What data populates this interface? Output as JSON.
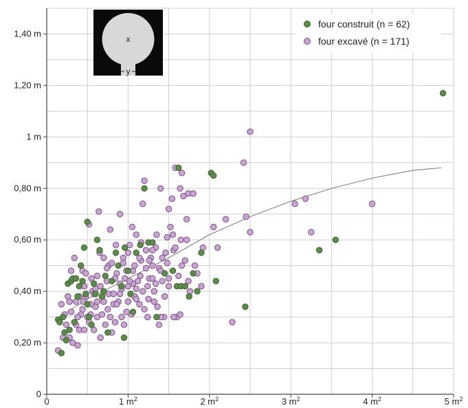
{
  "chart_data": {
    "type": "scatter",
    "xlim": [
      0,
      5
    ],
    "ylim": [
      0,
      1.5
    ],
    "x_ticks": [
      {
        "value": 0,
        "label": "0",
        "sup": ""
      },
      {
        "value": 1,
        "label": "1 m",
        "sup": "2"
      },
      {
        "value": 2,
        "label": "2 m",
        "sup": "2"
      },
      {
        "value": 3,
        "label": "3 m",
        "sup": "2"
      },
      {
        "value": 4,
        "label": "4 m",
        "sup": "2"
      },
      {
        "value": 5,
        "label": "5 m",
        "sup": "2"
      }
    ],
    "y_ticks": [
      {
        "value": 0,
        "label": "0"
      },
      {
        "value": 0.2,
        "label": "0,20 m"
      },
      {
        "value": 0.4,
        "label": "0,40 m"
      },
      {
        "value": 0.6,
        "label": "0,60 m"
      },
      {
        "value": 0.8,
        "label": "0,80 m"
      },
      {
        "value": 1.0,
        "label": "1 m"
      },
      {
        "value": 1.2,
        "label": "1,20 m"
      },
      {
        "value": 1.4,
        "label": "1,40 m"
      }
    ],
    "grid": true,
    "grid_step_x": 0.5,
    "grid_step_y": 0.1,
    "legend_position": "top-right",
    "inset": {
      "label_x": "x",
      "label_y": "y"
    },
    "trend": {
      "x": [
        0.15,
        0.5,
        1.0,
        1.5,
        2.0,
        2.5,
        3.0,
        3.5,
        4.0,
        4.5,
        4.85
      ],
      "y": [
        0.3,
        0.37,
        0.45,
        0.53,
        0.62,
        0.69,
        0.75,
        0.8,
        0.84,
        0.87,
        0.88
      ]
    },
    "series": [
      {
        "name": "four construit (n = 62)",
        "color": "#5f8a4e",
        "edge": "#3f6631",
        "points": [
          [
            0.14,
            0.29
          ],
          [
            0.16,
            0.28
          ],
          [
            0.18,
            0.16
          ],
          [
            0.2,
            0.3
          ],
          [
            0.22,
            0.24
          ],
          [
            0.24,
            0.21
          ],
          [
            0.26,
            0.43
          ],
          [
            0.28,
            0.25
          ],
          [
            0.3,
            0.44
          ],
          [
            0.32,
            0.45
          ],
          [
            0.34,
            0.28
          ],
          [
            0.36,
            0.45
          ],
          [
            0.38,
            0.38
          ],
          [
            0.4,
            0.42
          ],
          [
            0.42,
            0.5
          ],
          [
            0.44,
            0.44
          ],
          [
            0.46,
            0.57
          ],
          [
            0.48,
            0.39
          ],
          [
            0.5,
            0.67
          ],
          [
            0.52,
            0.3
          ],
          [
            0.55,
            0.27
          ],
          [
            0.58,
            0.43
          ],
          [
            0.6,
            0.39
          ],
          [
            0.62,
            0.6
          ],
          [
            0.65,
            0.56
          ],
          [
            0.68,
            0.38
          ],
          [
            0.72,
            0.46
          ],
          [
            0.75,
            0.24
          ],
          [
            0.8,
            0.44
          ],
          [
            0.85,
            0.55
          ],
          [
            0.88,
            0.5
          ],
          [
            0.92,
            0.42
          ],
          [
            0.95,
            0.22
          ],
          [
            1.0,
            0.48
          ],
          [
            1.03,
            0.39
          ],
          [
            1.06,
            0.32
          ],
          [
            1.1,
            0.55
          ],
          [
            1.15,
            0.58
          ],
          [
            1.2,
            0.8
          ],
          [
            1.25,
            0.59
          ],
          [
            1.3,
            0.59
          ],
          [
            1.35,
            0.3
          ],
          [
            1.45,
            0.47
          ],
          [
            1.55,
            0.48
          ],
          [
            1.6,
            0.42
          ],
          [
            1.62,
            0.88
          ],
          [
            1.65,
            0.42
          ],
          [
            1.7,
            0.42
          ],
          [
            1.75,
            0.38
          ],
          [
            1.8,
            0.47
          ],
          [
            1.85,
            0.4
          ],
          [
            1.9,
            0.55
          ],
          [
            2.02,
            0.86
          ],
          [
            2.05,
            0.85
          ],
          [
            2.08,
            0.44
          ],
          [
            2.44,
            0.34
          ],
          [
            3.35,
            0.56
          ],
          [
            3.55,
            0.6
          ],
          [
            4.87,
            1.17
          ],
          [
            0.96,
            0.57
          ],
          [
            0.7,
            0.4
          ],
          [
            0.5,
            0.35
          ]
        ]
      },
      {
        "name": "four excavé (n = 171)",
        "color": "#c8a6cf",
        "edge": "#7a4f86",
        "points": [
          [
            0.14,
            0.17
          ],
          [
            0.18,
            0.35
          ],
          [
            0.22,
            0.31
          ],
          [
            0.24,
            0.27
          ],
          [
            0.26,
            0.38
          ],
          [
            0.28,
            0.22
          ],
          [
            0.3,
            0.32
          ],
          [
            0.32,
            0.2
          ],
          [
            0.34,
            0.53
          ],
          [
            0.36,
            0.36
          ],
          [
            0.38,
            0.19
          ],
          [
            0.4,
            0.25
          ],
          [
            0.42,
            0.31
          ],
          [
            0.44,
            0.48
          ],
          [
            0.46,
            0.25
          ],
          [
            0.48,
            0.38
          ],
          [
            0.5,
            0.3
          ],
          [
            0.52,
            0.66
          ],
          [
            0.54,
            0.31
          ],
          [
            0.56,
            0.4
          ],
          [
            0.58,
            0.25
          ],
          [
            0.6,
            0.34
          ],
          [
            0.62,
            0.46
          ],
          [
            0.64,
            0.71
          ],
          [
            0.66,
            0.22
          ],
          [
            0.68,
            0.38
          ],
          [
            0.7,
            0.53
          ],
          [
            0.72,
            0.27
          ],
          [
            0.74,
            0.44
          ],
          [
            0.76,
            0.5
          ],
          [
            0.78,
            0.64
          ],
          [
            0.8,
            0.24
          ],
          [
            0.82,
            0.35
          ],
          [
            0.84,
            0.28
          ],
          [
            0.86,
            0.47
          ],
          [
            0.88,
            0.36
          ],
          [
            0.9,
            0.7
          ],
          [
            0.92,
            0.41
          ],
          [
            0.94,
            0.53
          ],
          [
            0.96,
            0.45
          ],
          [
            0.98,
            0.32
          ],
          [
            1.0,
            0.42
          ],
          [
            1.02,
            0.58
          ],
          [
            1.04,
            0.31
          ],
          [
            1.06,
            0.48
          ],
          [
            1.08,
            0.38
          ],
          [
            1.1,
            0.62
          ],
          [
            1.12,
            0.44
          ],
          [
            1.14,
            0.35
          ],
          [
            1.16,
            0.52
          ],
          [
            1.18,
            0.74
          ],
          [
            1.2,
            0.83
          ],
          [
            1.22,
            0.56
          ],
          [
            1.24,
            0.3
          ],
          [
            1.26,
            0.45
          ],
          [
            1.28,
            0.53
          ],
          [
            1.3,
            0.5
          ],
          [
            1.32,
            0.4
          ],
          [
            1.34,
            0.57
          ],
          [
            1.36,
            0.34
          ],
          [
            1.38,
            0.49
          ],
          [
            1.4,
            0.8
          ],
          [
            1.42,
            0.44
          ],
          [
            1.44,
            0.3
          ],
          [
            1.46,
            0.55
          ],
          [
            1.48,
            0.61
          ],
          [
            1.5,
            0.42
          ],
          [
            1.52,
            0.65
          ],
          [
            1.54,
            0.76
          ],
          [
            1.56,
            0.56
          ],
          [
            1.58,
            0.88
          ],
          [
            1.6,
            0.3
          ],
          [
            1.62,
            0.46
          ],
          [
            1.64,
            0.8
          ],
          [
            1.66,
            0.86
          ],
          [
            1.68,
            0.77
          ],
          [
            1.7,
            0.52
          ],
          [
            1.72,
            0.68
          ],
          [
            1.74,
            0.78
          ],
          [
            1.76,
            0.4
          ],
          [
            1.8,
            0.78
          ],
          [
            1.85,
            0.47
          ],
          [
            1.9,
            0.42
          ],
          [
            1.92,
            0.57
          ],
          [
            2.05,
            0.65
          ],
          [
            2.1,
            0.57
          ],
          [
            2.2,
            0.68
          ],
          [
            2.28,
            0.28
          ],
          [
            2.42,
            0.9
          ],
          [
            2.45,
            0.69
          ],
          [
            2.5,
            0.63
          ],
          [
            2.5,
            1.02
          ],
          [
            3.05,
            0.74
          ],
          [
            3.18,
            0.76
          ],
          [
            3.25,
            0.63
          ],
          [
            4.0,
            0.74
          ],
          [
            0.3,
            0.48
          ],
          [
            0.45,
            0.36
          ],
          [
            0.55,
            0.45
          ],
          [
            0.65,
            0.55
          ],
          [
            0.75,
            0.33
          ],
          [
            0.85,
            0.58
          ],
          [
            0.95,
            0.27
          ],
          [
            1.05,
            0.65
          ],
          [
            1.15,
            0.46
          ],
          [
            1.25,
            0.37
          ],
          [
            1.35,
            0.62
          ],
          [
            1.45,
            0.38
          ],
          [
            1.55,
            0.62
          ],
          [
            1.65,
            0.6
          ],
          [
            0.38,
            0.3
          ],
          [
            0.62,
            0.36
          ],
          [
            0.8,
            0.51
          ],
          [
            0.9,
            0.43
          ],
          [
            1.0,
            0.36
          ],
          [
            1.1,
            0.41
          ],
          [
            1.2,
            0.33
          ],
          [
            1.3,
            0.45
          ],
          [
            1.4,
            0.48
          ],
          [
            1.5,
            0.72
          ],
          [
            0.2,
            0.22
          ],
          [
            0.28,
            0.36
          ],
          [
            0.36,
            0.27
          ],
          [
            0.44,
            0.33
          ],
          [
            0.52,
            0.28
          ],
          [
            0.6,
            0.41
          ],
          [
            0.68,
            0.31
          ],
          [
            0.76,
            0.39
          ],
          [
            0.84,
            0.45
          ],
          [
            0.92,
            0.3
          ],
          [
            1.0,
            0.55
          ],
          [
            1.08,
            0.5
          ],
          [
            1.16,
            0.59
          ],
          [
            1.24,
            0.42
          ],
          [
            1.32,
            0.36
          ],
          [
            1.4,
            0.3
          ],
          [
            1.48,
            0.51
          ],
          [
            1.56,
            0.3
          ],
          [
            1.64,
            0.31
          ],
          [
            1.72,
            0.6
          ],
          [
            0.58,
            0.39
          ],
          [
            0.66,
            0.42
          ],
          [
            0.74,
            0.49
          ],
          [
            0.82,
            0.39
          ],
          [
            0.9,
            0.39
          ],
          [
            0.98,
            0.48
          ],
          [
            1.06,
            0.43
          ],
          [
            1.14,
            0.53
          ],
          [
            1.22,
            0.49
          ],
          [
            1.3,
            0.56
          ],
          [
            0.46,
            0.42
          ],
          [
            0.54,
            0.35
          ],
          [
            0.62,
            0.3
          ],
          [
            0.7,
            0.36
          ],
          [
            0.78,
            0.3
          ],
          [
            0.86,
            0.35
          ],
          [
            0.94,
            0.51
          ],
          [
            1.02,
            0.44
          ],
          [
            1.1,
            0.37
          ],
          [
            1.18,
            0.4
          ],
          [
            1.26,
            0.52
          ],
          [
            1.34,
            0.43
          ],
          [
            1.42,
            0.53
          ],
          [
            1.5,
            0.45
          ],
          [
            1.58,
            0.57
          ],
          [
            1.66,
            0.5
          ],
          [
            1.74,
            0.44
          ],
          [
            1.82,
            0.5
          ],
          [
            0.4,
            0.38
          ],
          [
            0.48,
            0.47
          ],
          [
            1.38,
            0.27
          ]
        ]
      }
    ]
  }
}
